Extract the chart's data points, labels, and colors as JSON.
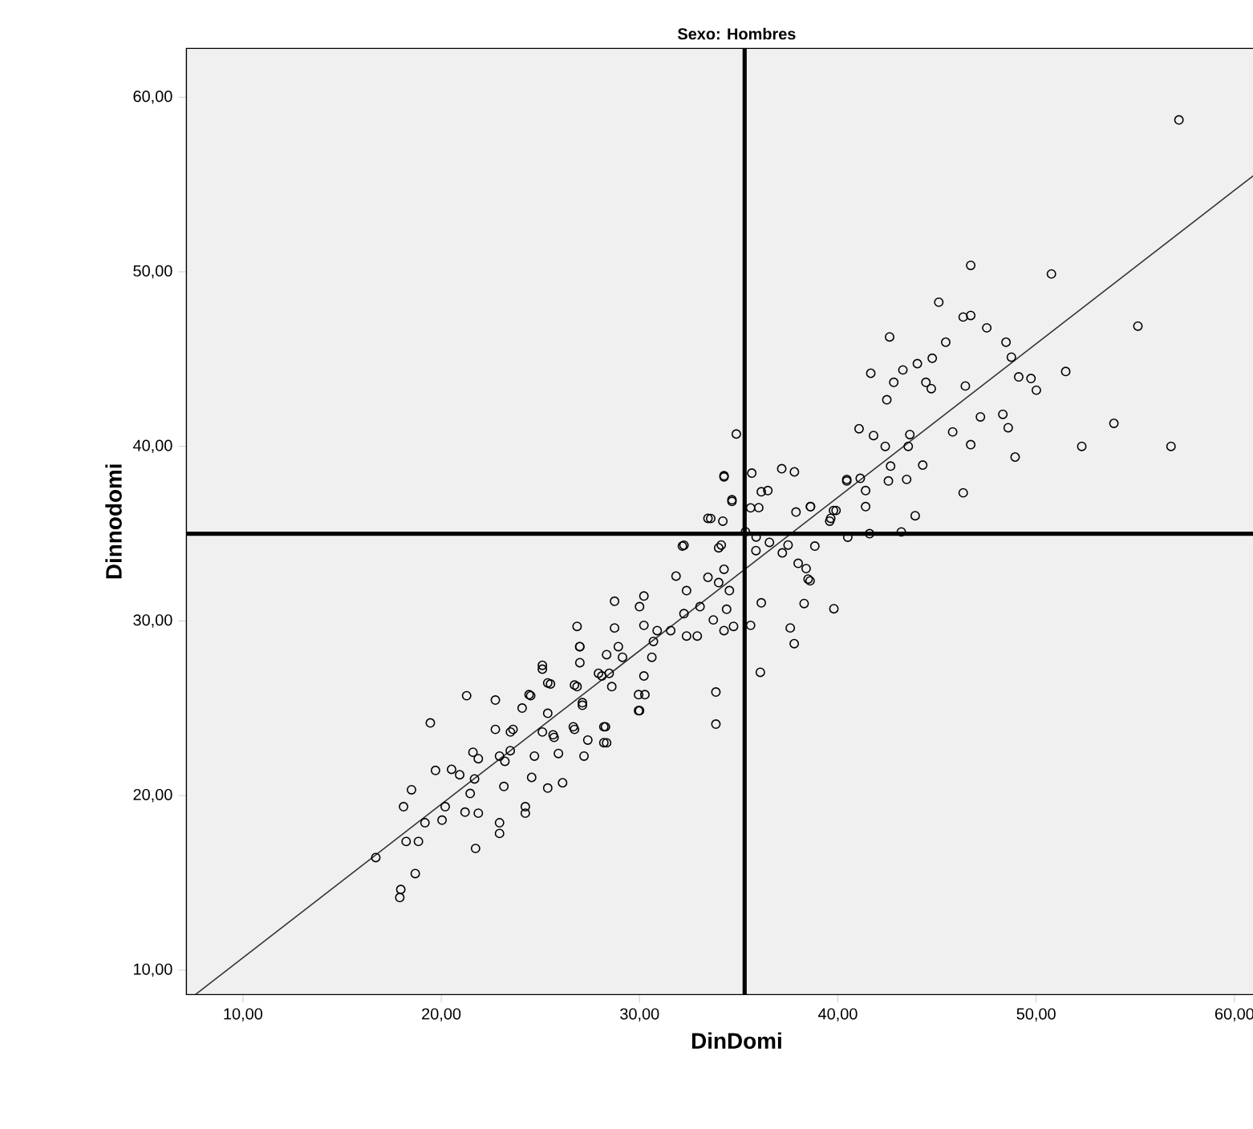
{
  "chart_data": {
    "type": "scatter",
    "title": "Sexo: Hombres",
    "xlabel": "DinDomi",
    "ylabel": "Dinnodomi",
    "xlim": [
      7.15,
      62.65
    ],
    "ylim": [
      8.6,
      62.8
    ],
    "xticks": [
      {
        "value": 10,
        "label": "10,00"
      },
      {
        "value": 20,
        "label": "20,00"
      },
      {
        "value": 30,
        "label": "30,00"
      },
      {
        "value": 40,
        "label": "40,00"
      },
      {
        "value": 50,
        "label": "50,00"
      },
      {
        "value": 60,
        "label": "60,00"
      }
    ],
    "yticks": [
      {
        "value": 10,
        "label": "10,00"
      },
      {
        "value": 20,
        "label": "20,00"
      },
      {
        "value": 30,
        "label": "30,00"
      },
      {
        "value": 40,
        "label": "40,00"
      },
      {
        "value": 50,
        "label": "50,00"
      },
      {
        "value": 60,
        "label": "60,00"
      }
    ],
    "grid": false,
    "ref_lines": [
      {
        "axis": "x",
        "value": 35.3,
        "color": "#000000"
      },
      {
        "axis": "y",
        "value": 35.0,
        "color": "#000000"
      }
    ],
    "series": [
      {
        "marker": "circle",
        "color": "#000000",
        "x": [
          16.7,
          17.91,
          17.96,
          18.69,
          18.1,
          18.5,
          19.45,
          19.71,
          20.52,
          19.18,
          20.04,
          18.23,
          18.85,
          21.28,
          21.73,
          20.2,
          21.2,
          21.87,
          21.46,
          21.68,
          20.93,
          21.6,
          21.87,
          22.94,
          22.94,
          24.24,
          24.24,
          23.16,
          22.73,
          22.73,
          23.62,
          23.48,
          23.21,
          24.56,
          25.37,
          26.12,
          24.7,
          24.08,
          24.51,
          25.1,
          25.37,
          25.37,
          25.1,
          25.69,
          25.91,
          26.66,
          27.2,
          27.39,
          28.2,
          28.28,
          26.72,
          27.12,
          26.98,
          27.93,
          28.6,
          29.14,
          29.95,
          29.95,
          22.94,
          34.26,
          34.66,
          33.59,
          34.2,
          35.6,
          32.24,
          33.99,
          35.87,
          36.14,
          31.84,
          32.37,
          33.45,
          34.26,
          33.99,
          34.53,
          34.39,
          36.14,
          35.6,
          34.74,
          34.26,
          33.72,
          33.05,
          32.24,
          32.91,
          32.37,
          31.57,
          30.89,
          30.22,
          30.0,
          28.74,
          30.22,
          30.7,
          30.62,
          30.22,
          30.27,
          30.0,
          28.74,
          28.93,
          28.34,
          28.47,
          28.1,
          26.99,
          26.85,
          26.99,
          27.12,
          26.85,
          25.1,
          25.51,
          24.43,
          33.85,
          33.85,
          36.09,
          28.2,
          28.34,
          26.72,
          25.64,
          23.49,
          34.88,
          34.26,
          35.66,
          37.17,
          37.81,
          36.47,
          34.66,
          33.45,
          36.01,
          37.89,
          38.62,
          39.64,
          39.91,
          40.45,
          32.16,
          38.84,
          37.49,
          36.55,
          34.12,
          35.88,
          35.34,
          46.7,
          50.77,
          45.09,
          46.32,
          46.7,
          47.51,
          42.61,
          45.44,
          48.48,
          48.75,
          55.13,
          44.76,
          44.01,
          43.28,
          41.66,
          42.82,
          44.44,
          44.71,
          42.47,
          46.43,
          49.12,
          49.74,
          50.01,
          51.49,
          53.92,
          52.3,
          48.32,
          48.59,
          47.19,
          45.79,
          46.7,
          48.94,
          41.07,
          41.8,
          42.39,
          43.63,
          43.55,
          42.66,
          44.28,
          43.47,
          40.45,
          41.13,
          41.4,
          42.55,
          41.4,
          43.9,
          46.32,
          38.62,
          39.78,
          39.59,
          57.2,
          56.8,
          37.6,
          37.8,
          39.8,
          38.3,
          38.5,
          40.5,
          43.2,
          41.6,
          37.2,
          38.0,
          38.4,
          38.6
        ],
        "values": [
          16.45,
          14.16,
          14.62,
          15.53,
          19.36,
          20.33,
          24.16,
          21.44,
          21.5,
          18.44,
          18.59,
          17.37,
          17.37,
          25.72,
          16.97,
          19.36,
          19.05,
          18.99,
          20.12,
          20.95,
          21.19,
          22.48,
          22.11,
          18.44,
          17.83,
          19.36,
          18.99,
          20.52,
          23.79,
          25.47,
          23.79,
          22.57,
          21.96,
          21.04,
          20.43,
          20.73,
          22.26,
          25.01,
          25.72,
          27.46,
          26.45,
          24.71,
          23.64,
          23.33,
          22.41,
          23.94,
          22.26,
          23.18,
          23.03,
          23.94,
          26.33,
          25.32,
          28.53,
          27.0,
          26.24,
          27.92,
          25.78,
          24.86,
          22.26,
          38.25,
          36.94,
          35.87,
          35.72,
          36.48,
          34.34,
          34.19,
          34.03,
          37.4,
          32.57,
          31.74,
          32.5,
          32.96,
          32.2,
          31.74,
          30.67,
          31.04,
          29.75,
          29.69,
          29.45,
          30.06,
          30.82,
          30.42,
          29.14,
          29.14,
          29.45,
          29.45,
          31.43,
          30.82,
          31.13,
          29.75,
          28.83,
          27.92,
          26.85,
          25.78,
          24.86,
          29.6,
          28.53,
          28.07,
          27.0,
          26.85,
          28.53,
          29.69,
          27.61,
          25.17,
          26.24,
          27.24,
          26.39,
          25.78,
          25.93,
          24.09,
          27.06,
          23.94,
          23.02,
          23.79,
          23.48,
          23.64,
          40.71,
          38.32,
          38.47,
          38.72,
          38.54,
          37.47,
          36.85,
          35.88,
          36.49,
          36.24,
          36.55,
          35.88,
          36.33,
          38.02,
          34.29,
          34.29,
          34.35,
          34.5,
          34.35,
          34.81,
          35.11,
          50.37,
          49.88,
          48.26,
          47.41,
          47.5,
          46.79,
          46.27,
          45.97,
          45.97,
          45.11,
          46.89,
          45.05,
          44.74,
          44.38,
          44.19,
          43.67,
          43.67,
          43.31,
          42.67,
          43.46,
          43.98,
          43.89,
          43.22,
          44.29,
          41.32,
          40.0,
          41.84,
          41.07,
          41.69,
          40.83,
          40.1,
          39.39,
          41.01,
          40.62,
          40.0,
          40.68,
          40.0,
          38.87,
          38.93,
          38.11,
          38.11,
          38.17,
          37.47,
          38.02,
          36.55,
          36.03,
          37.34,
          36.55,
          36.33,
          35.72,
          58.7,
          40.0,
          29.6,
          28.7,
          30.7,
          31.0,
          32.4,
          34.8,
          35.1,
          35.0,
          33.9,
          33.3,
          33.0,
          32.3
        ]
      },
      {
        "type": "line",
        "marker": "none",
        "color": "#333333",
        "x": [
          7.6,
          62.65
        ],
        "values": [
          8.6,
          57.0
        ]
      }
    ]
  }
}
